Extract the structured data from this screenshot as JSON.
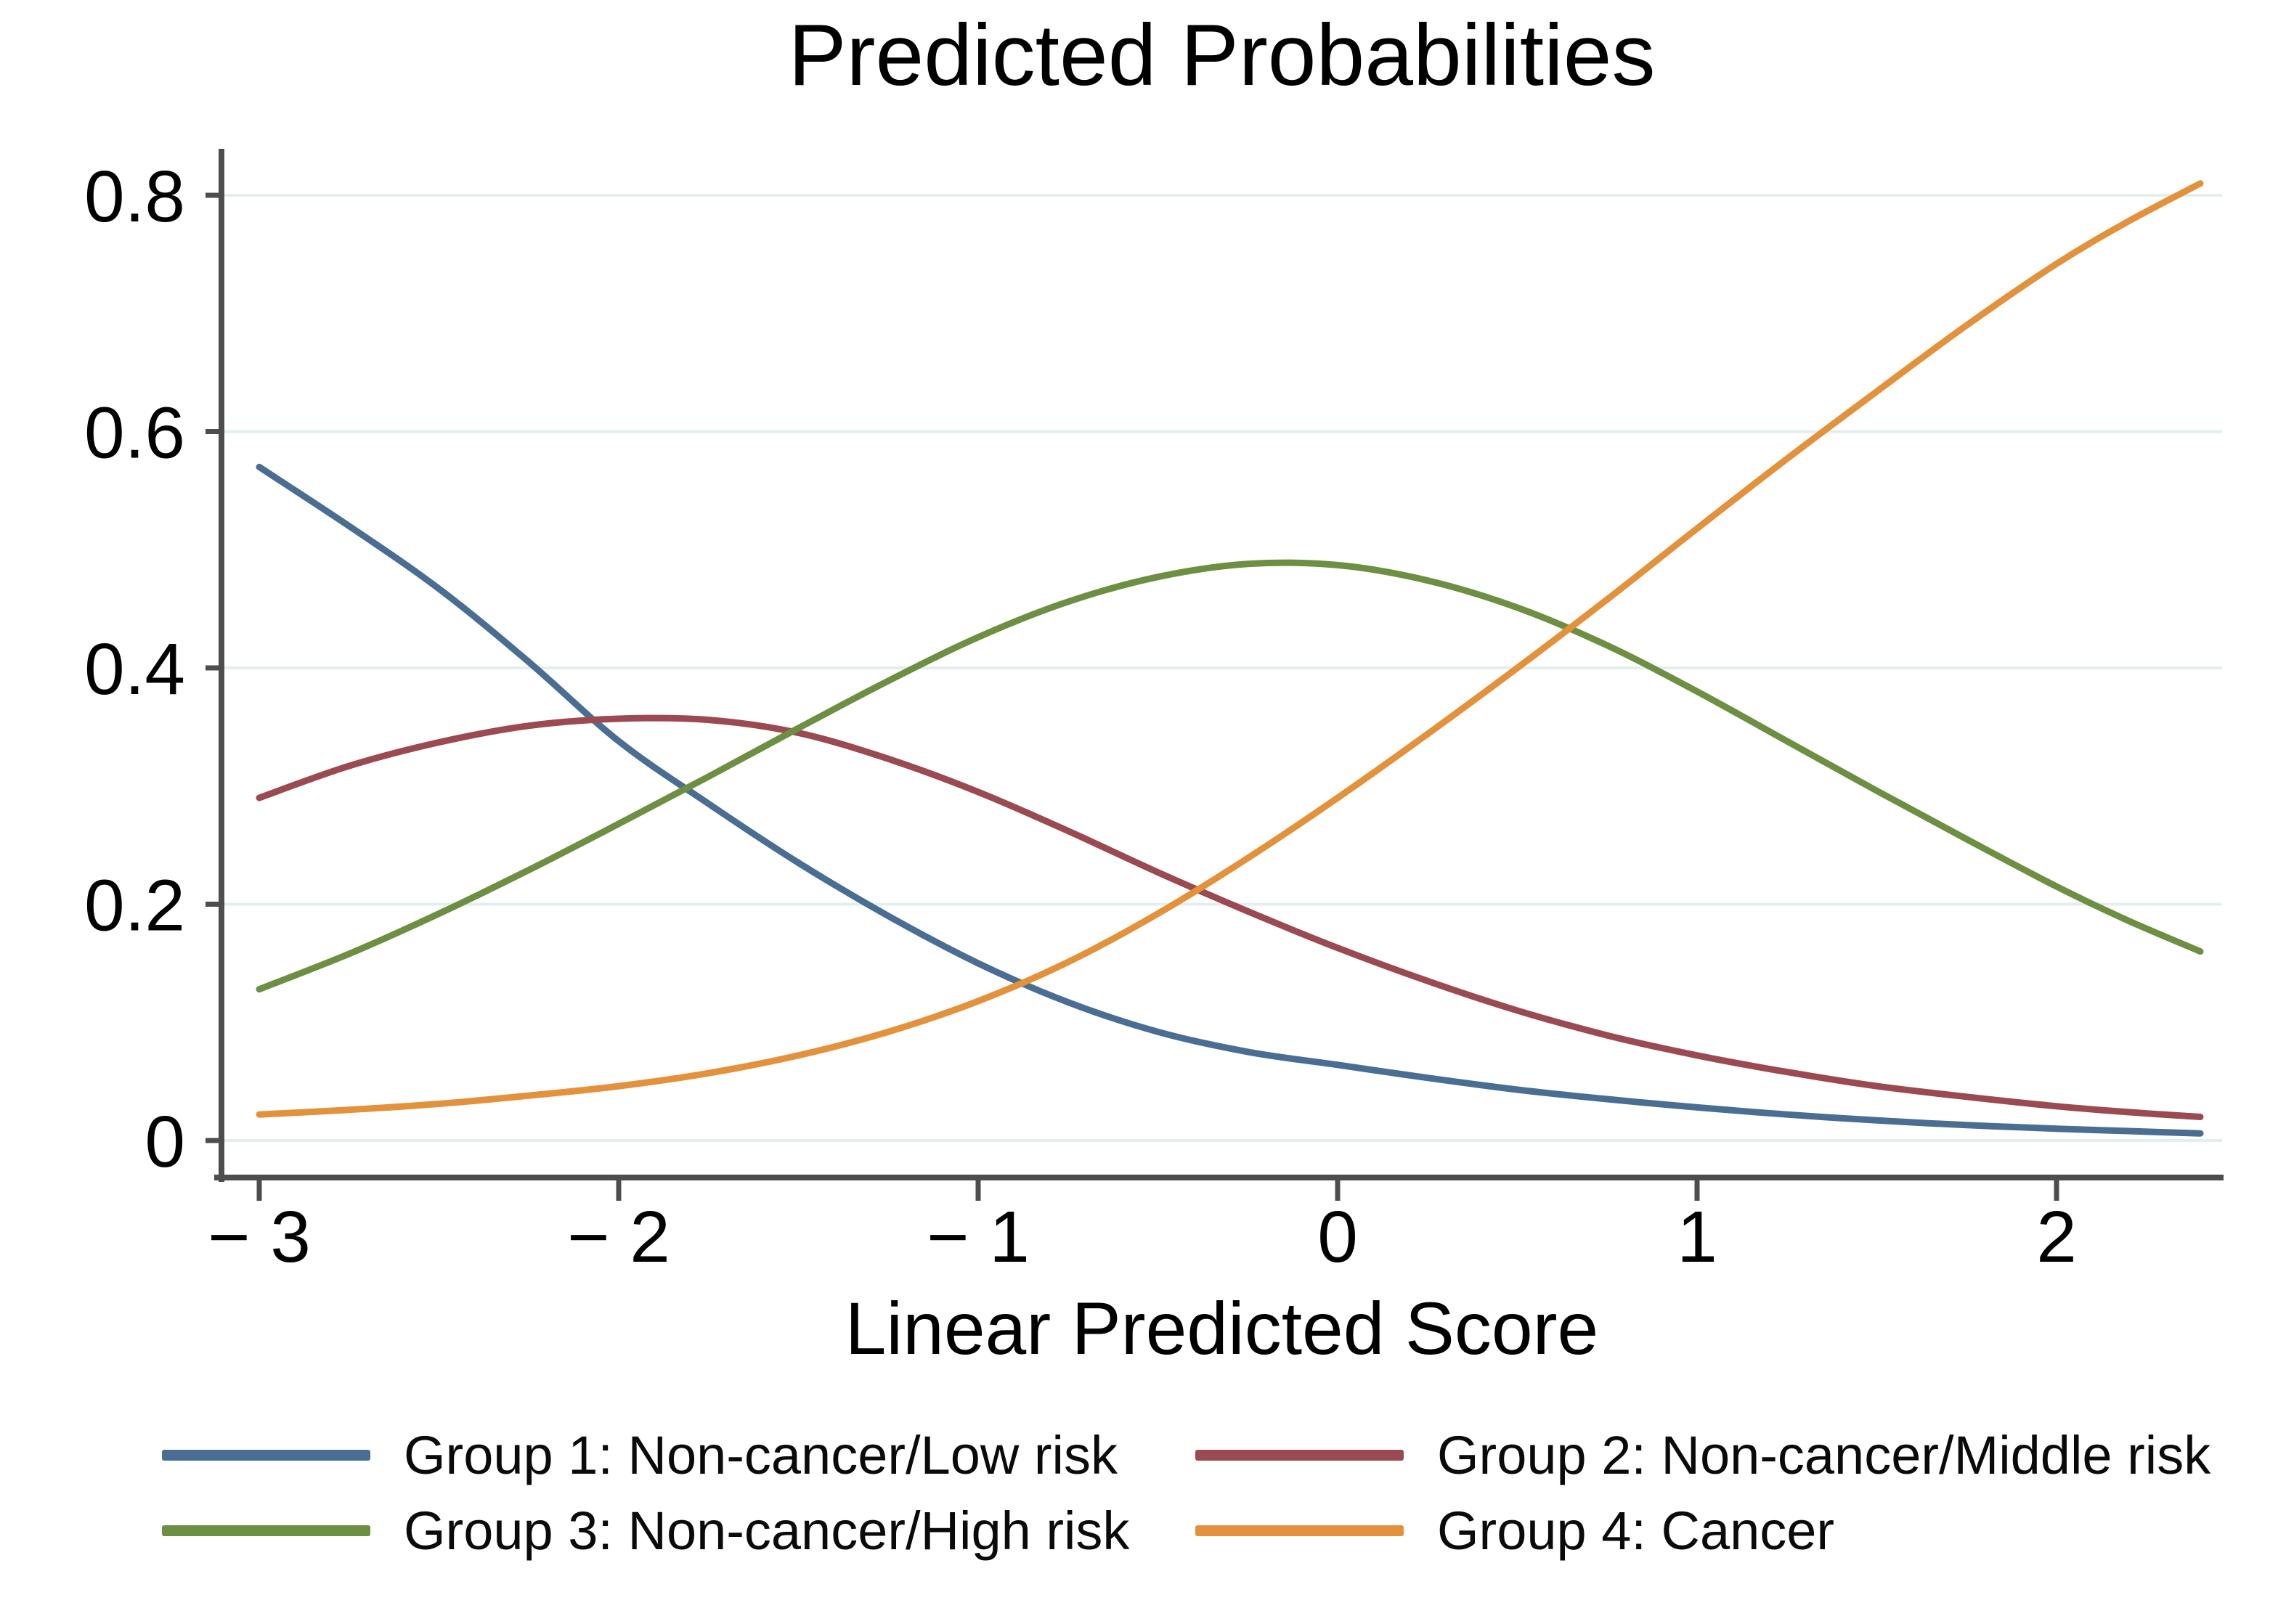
{
  "figure": {
    "title": "Predicted Probabilities",
    "x_axis_label": "Linear Predicted Score"
  },
  "chart_data": {
    "type": "line",
    "title": "Predicted Probabilities",
    "xlabel": "Linear Predicted Score",
    "ylabel": "",
    "xlim": [
      -3.1,
      2.46
    ],
    "ylim": [
      0,
      0.84
    ],
    "grid": "horizontal",
    "grid_color": "#e2efef",
    "axis_color": "#4d4d4d",
    "legend_position": "bottom",
    "x_ticks": [
      {
        "value": -3,
        "label": "− 3"
      },
      {
        "value": -2,
        "label": "− 2"
      },
      {
        "value": -1,
        "label": "− 1"
      },
      {
        "value": 0,
        "label": "0"
      },
      {
        "value": 1,
        "label": "1"
      },
      {
        "value": 2,
        "label": "2"
      }
    ],
    "y_ticks": [
      {
        "value": 0,
        "label": "0"
      },
      {
        "value": 0.2,
        "label": "0.2"
      },
      {
        "value": 0.4,
        "label": "0.4"
      },
      {
        "value": 0.6,
        "label": "0.6"
      },
      {
        "value": 0.8,
        "label": "0.8"
      }
    ],
    "x": [
      -3,
      -2.75,
      -2.5,
      -2.25,
      -2,
      -1.75,
      -1.5,
      -1.25,
      -1,
      -0.75,
      -0.5,
      -0.25,
      0,
      0.25,
      0.5,
      0.75,
      1,
      1.25,
      1.5,
      1.75,
      2,
      2.2,
      2.4
    ],
    "series": [
      {
        "name": "Group 1: Non-cancer/Low risk",
        "color": "#4a6d94",
        "values": [
          0.57,
          0.52,
          0.467,
          0.405,
          0.338,
          0.285,
          0.235,
          0.19,
          0.15,
          0.117,
          0.092,
          0.075,
          0.064,
          0.053,
          0.043,
          0.035,
          0.028,
          0.022,
          0.017,
          0.013,
          0.01,
          0.008,
          0.006
        ]
      },
      {
        "name": "Group 2: Non-cancer/Middle risk",
        "color": "#9a4a50",
        "values": [
          0.29,
          0.317,
          0.337,
          0.351,
          0.357,
          0.356,
          0.345,
          0.323,
          0.295,
          0.262,
          0.227,
          0.194,
          0.163,
          0.135,
          0.11,
          0.089,
          0.072,
          0.058,
          0.046,
          0.037,
          0.029,
          0.024,
          0.02
        ]
      },
      {
        "name": "Group 3: Non-cancer/High risk",
        "color": "#6d8f42",
        "values": [
          0.128,
          0.158,
          0.192,
          0.229,
          0.268,
          0.308,
          0.349,
          0.389,
          0.426,
          0.456,
          0.477,
          0.488,
          0.487,
          0.474,
          0.451,
          0.419,
          0.38,
          0.338,
          0.296,
          0.255,
          0.215,
          0.186,
          0.16
        ]
      },
      {
        "name": "Group 4: Cancer",
        "color": "#e4913c",
        "values": [
          0.022,
          0.026,
          0.031,
          0.038,
          0.046,
          0.057,
          0.072,
          0.092,
          0.118,
          0.151,
          0.192,
          0.239,
          0.29,
          0.344,
          0.4,
          0.458,
          0.518,
          0.577,
          0.634,
          0.69,
          0.742,
          0.778,
          0.81
        ]
      }
    ]
  }
}
